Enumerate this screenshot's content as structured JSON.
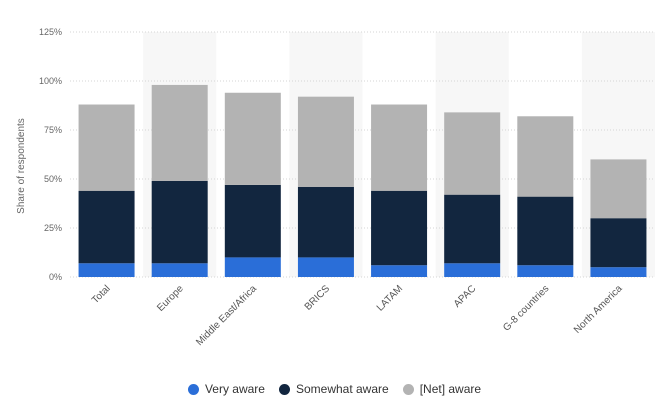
{
  "chart_data": {
    "type": "bar",
    "stacked": true,
    "title": "",
    "xlabel": "",
    "ylabel": "Share of respondents",
    "ylim": [
      0,
      125
    ],
    "yticks": [
      0,
      25,
      50,
      75,
      100,
      125
    ],
    "ytick_labels": [
      "0%",
      "25%",
      "50%",
      "75%",
      "100%",
      "125%"
    ],
    "grid": true,
    "legend_position": "bottom",
    "categories": [
      "Total",
      "Europe",
      "Middle East/Africa",
      "BRICS",
      "LATAM",
      "APAC",
      "G-8 countries",
      "North America"
    ],
    "series": [
      {
        "name": "Very aware",
        "color": "#2a6ed8",
        "values": [
          7,
          7,
          10,
          10,
          6,
          7,
          6,
          5
        ]
      },
      {
        "name": "Somewhat aware",
        "color": "#12263f",
        "values": [
          37,
          42,
          37,
          36,
          38,
          35,
          35,
          25
        ]
      },
      {
        "name": "[Net] aware",
        "color": "#b3b3b3",
        "values": [
          44,
          49,
          47,
          46,
          44,
          42,
          41,
          30
        ]
      }
    ]
  }
}
